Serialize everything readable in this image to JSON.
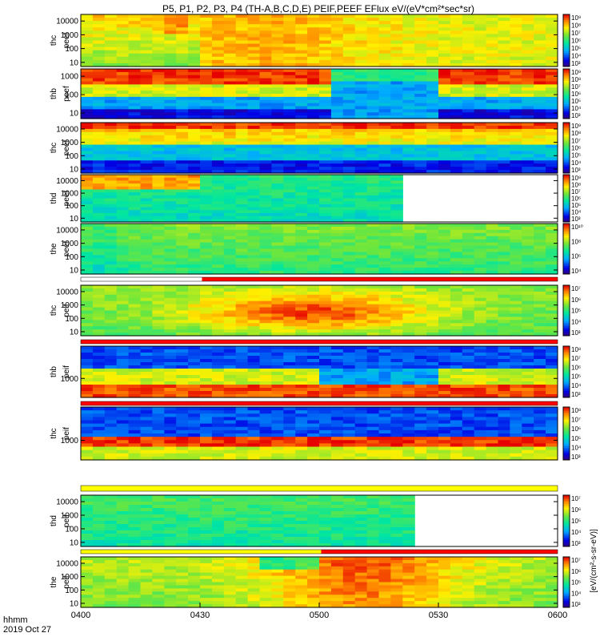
{
  "title": "P5, P1, P2, P3, P4 (TH-A,B,C,D,E) PEIF,PEEF EFlux eV/(eV*cm²*sec*sr)",
  "colorbar_title": "[eV/(cm²-s-sr-eV)]",
  "x_axis": {
    "tick_labels": [
      "0400",
      "0430",
      "0500",
      "0530",
      "0600"
    ],
    "tick_values_min": [
      0,
      30,
      60,
      90,
      120
    ],
    "corner_label_1": "hhmm",
    "corner_label_2": "2019 Oct 27"
  },
  "chart_data": {
    "type": "heatmap",
    "x_range_min": [
      0,
      120
    ],
    "y_scale": "log",
    "panels": [
      {
        "name": "thc peef",
        "label1": "thc",
        "label2": "peef",
        "y_ticks": [
          "10000",
          "1000",
          "100",
          "10"
        ],
        "y_tick_values": [
          10000,
          1000,
          100,
          10
        ],
        "y_range": [
          5,
          30000
        ],
        "cbar_ticks": [
          "10⁹",
          "10⁸",
          "10⁷",
          "10⁶",
          "10⁵",
          "10⁴",
          "10³"
        ],
        "cbar_range_exp": [
          3,
          9
        ],
        "data_end_min": 120
      },
      {
        "name": "thb peef",
        "label1": "thb",
        "label2": "peef",
        "y_ticks": [
          "1000",
          "100",
          "10"
        ],
        "y_tick_values": [
          1000,
          100,
          10
        ],
        "y_range": [
          5,
          2500
        ],
        "cbar_ticks": [
          "10⁹",
          "10⁸",
          "10⁷",
          "10⁶",
          "10⁵",
          "10⁴",
          "10³"
        ],
        "cbar_range_exp": [
          3,
          9
        ],
        "data_end_min": 120
      },
      {
        "name": "thc peef",
        "label1": "thc",
        "label2": "peef",
        "y_ticks": [
          "10000",
          "1000",
          "100",
          "10"
        ],
        "y_tick_values": [
          10000,
          1000,
          100,
          10
        ],
        "y_range": [
          5,
          30000
        ],
        "cbar_ticks": [
          "10⁹",
          "10⁸",
          "10⁷",
          "10⁶",
          "10⁵",
          "10⁴",
          "10³"
        ],
        "cbar_range_exp": [
          3,
          9
        ],
        "data_end_min": 120
      },
      {
        "name": "thd peef",
        "label1": "thd",
        "label2": "peef",
        "y_ticks": [
          "10000",
          "1000",
          "100",
          "10"
        ],
        "y_tick_values": [
          10000,
          1000,
          100,
          10
        ],
        "y_range": [
          5,
          30000
        ],
        "cbar_ticks": [
          "10⁹",
          "10⁸",
          "10⁷",
          "10⁶",
          "10⁵",
          "10⁴",
          "10³"
        ],
        "cbar_range_exp": [
          3,
          9
        ],
        "data_end_min": 81.5
      },
      {
        "name": "the peef",
        "label1": "the",
        "label2": "peef",
        "y_ticks": [
          "10000",
          "1000",
          "100",
          "10"
        ],
        "y_tick_values": [
          10000,
          1000,
          100,
          10
        ],
        "y_range": [
          5,
          30000
        ],
        "cbar_ticks": [
          "10¹⁰",
          "10⁸",
          "10⁶",
          "10⁴"
        ],
        "cbar_range_exp": [
          3,
          10
        ],
        "data_end_min": 120
      },
      {
        "name": "thc peif",
        "label1": "thc",
        "label2": "peif",
        "y_ticks": [
          "10000",
          "1000",
          "100",
          "10"
        ],
        "y_tick_values": [
          10000,
          1000,
          100,
          10
        ],
        "y_range": [
          5,
          30000
        ],
        "cbar_ticks": [
          "10⁷",
          "10⁶",
          "10⁵",
          "10⁴",
          "10³"
        ],
        "cbar_range_exp": [
          3,
          7
        ],
        "data_end_min": 120
      },
      {
        "name": "thb peif",
        "label1": "thb",
        "label2": "peif",
        "y_ticks": [
          "1000"
        ],
        "y_tick_values": [
          1000
        ],
        "y_range": [
          150,
          25000
        ],
        "cbar_ticks": [
          "10⁸",
          "10⁷",
          "10⁶",
          "10⁵",
          "10⁴",
          "10³"
        ],
        "cbar_range_exp": [
          3,
          8
        ],
        "data_end_min": 120
      },
      {
        "name": "thc peif",
        "label1": "thc",
        "label2": "peif",
        "y_ticks": [
          "1000"
        ],
        "y_tick_values": [
          1000
        ],
        "y_range": [
          150,
          25000
        ],
        "cbar_ticks": [
          "10⁸",
          "10⁷",
          "10⁶",
          "10⁵",
          "10⁴",
          "10³"
        ],
        "cbar_range_exp": [
          3,
          8
        ],
        "data_end_min": 120
      },
      {
        "name": "thd peif",
        "label1": "thd",
        "label2": "peif",
        "y_ticks": [
          "10000",
          "1000",
          "100",
          "10"
        ],
        "y_tick_values": [
          10000,
          1000,
          100,
          10
        ],
        "y_range": [
          5,
          30000
        ],
        "cbar_ticks": [
          "10⁷",
          "10⁶",
          "10⁵",
          "10⁴",
          "10³"
        ],
        "cbar_range_exp": [
          3,
          7
        ],
        "data_end_min": 84.5
      },
      {
        "name": "the peif",
        "label1": "the",
        "label2": "peif",
        "y_ticks": [
          "10000",
          "1000",
          "100",
          "10"
        ],
        "y_tick_values": [
          10000,
          1000,
          100,
          10
        ],
        "y_range": [
          5,
          30000
        ],
        "cbar_ticks": [
          "10⁷",
          "10⁶",
          "10⁵",
          "10⁴",
          "10³"
        ],
        "cbar_range_exp": [
          3,
          7
        ],
        "data_end_min": 120
      }
    ],
    "flag_bars": [
      {
        "after_panel": 4,
        "segments": [
          {
            "x0": 0,
            "x1": 30.5,
            "color": "#ffffff"
          },
          {
            "x0": 30.5,
            "x1": 120,
            "color": "#ff0000"
          }
        ]
      },
      {
        "after_panel": 5,
        "segments": [
          {
            "x0": 0,
            "x1": 120,
            "color": "#ff0000"
          }
        ]
      },
      {
        "after_panel": 6,
        "segments": [
          {
            "x0": 0,
            "x1": 120,
            "color": "#ff0000"
          }
        ]
      },
      {
        "after_panel": 7,
        "segments": [
          {
            "x0": 0,
            "x1": 120,
            "color": "#ffff00"
          }
        ]
      },
      {
        "after_panel": 8,
        "segments": [
          {
            "x0": 0,
            "x1": 60.5,
            "color": "#ffff00"
          },
          {
            "x0": 60.5,
            "x1": 120,
            "color": "#ff0000"
          }
        ]
      }
    ]
  }
}
